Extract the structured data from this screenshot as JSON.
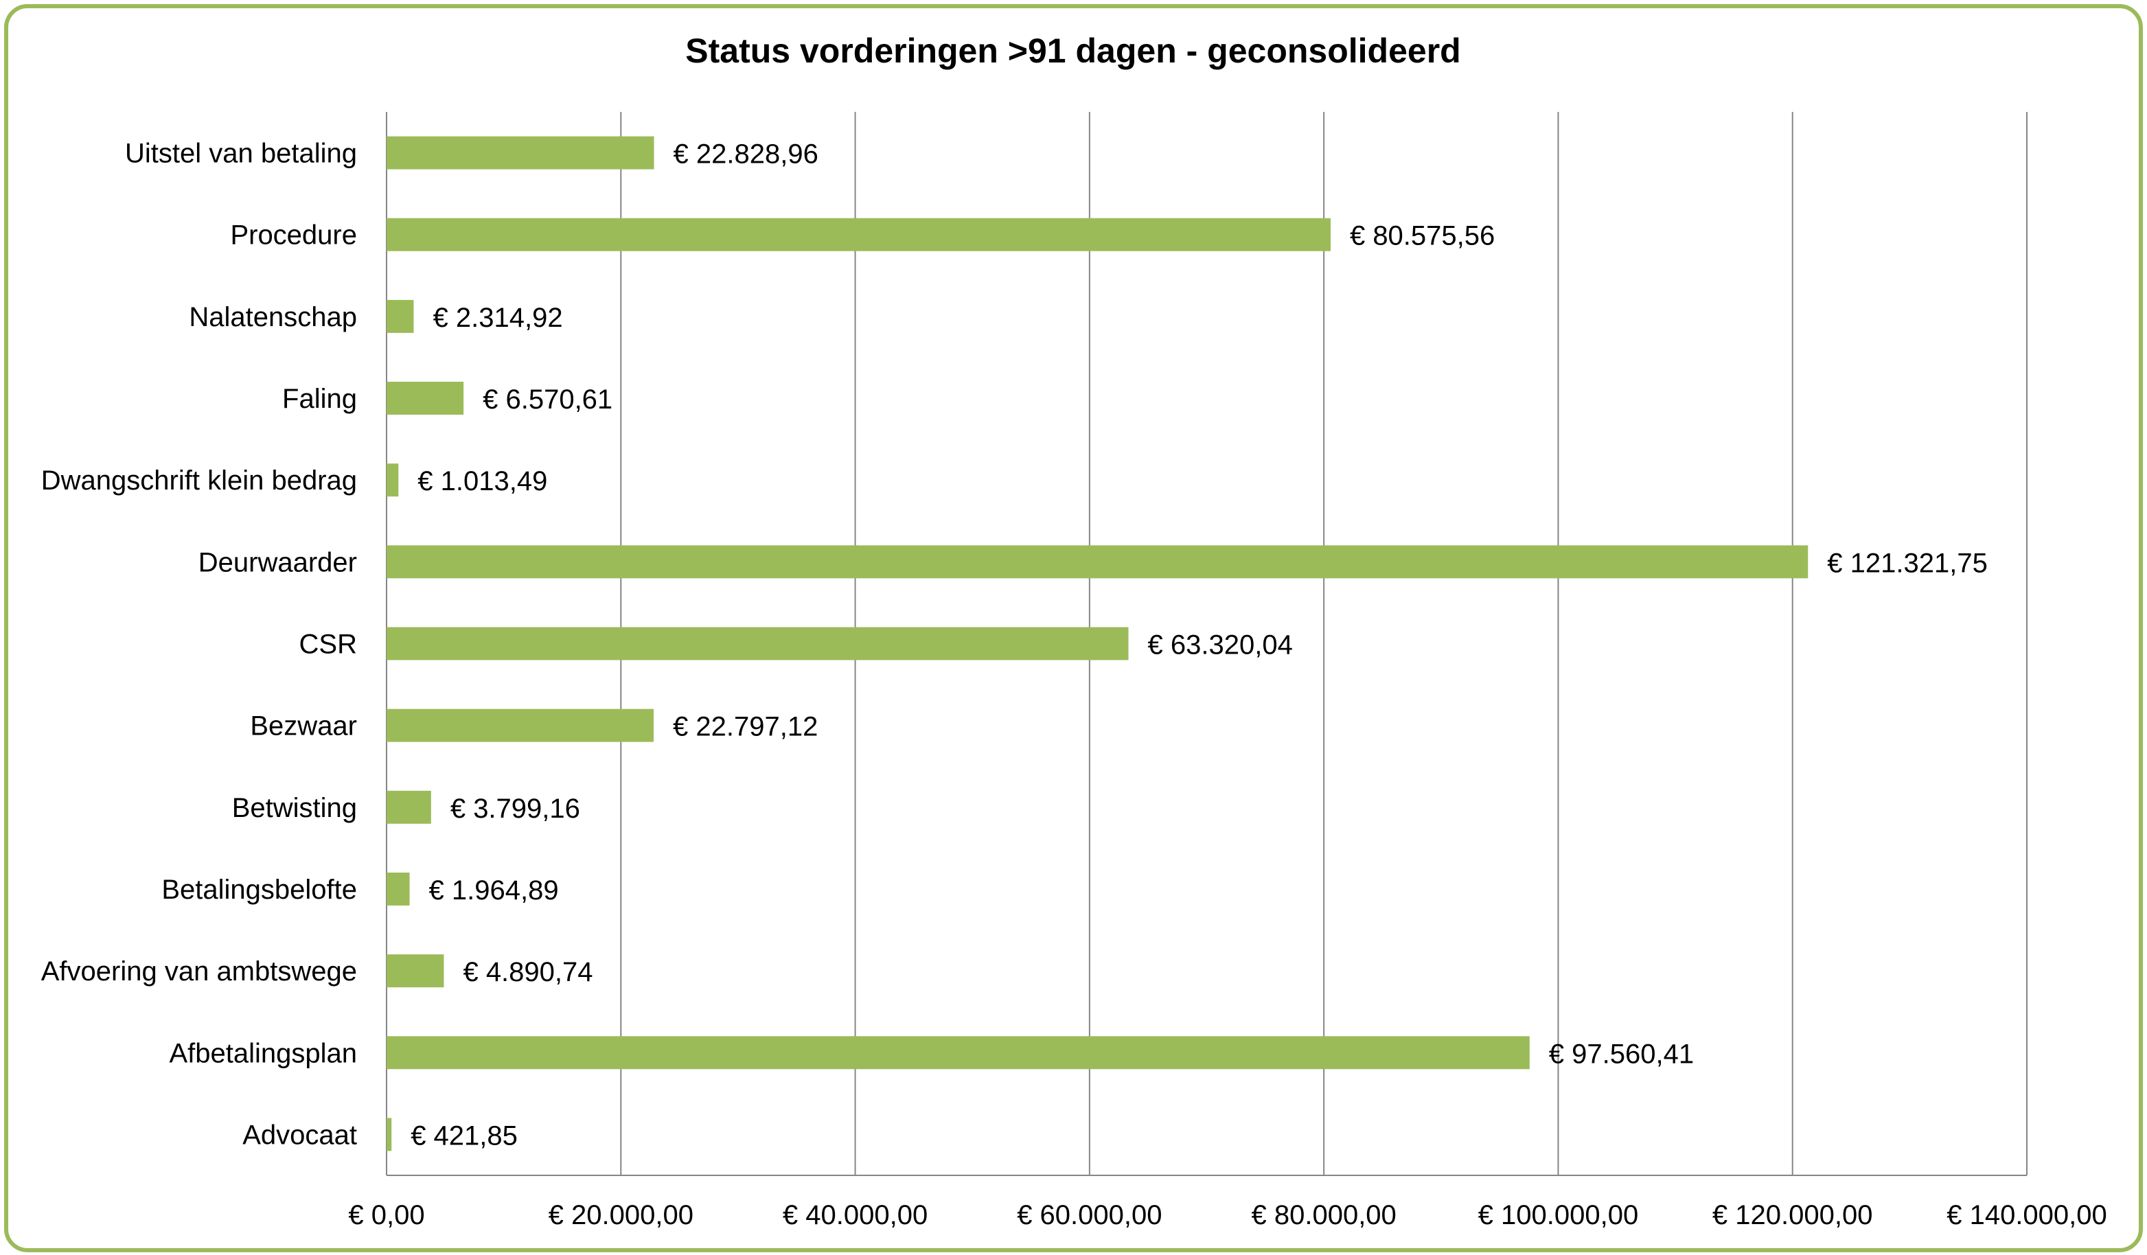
{
  "chart_data": {
    "type": "bar",
    "orientation": "horizontal",
    "title": "Status vorderingen >91 dagen - geconsolideerd",
    "xlabel": "",
    "ylabel": "",
    "categories": [
      "Uitstel van betaling",
      "Procedure",
      "Nalatenschap",
      "Faling",
      "Dwangschrift klein bedrag",
      "Deurwaarder",
      "CSR",
      "Bezwaar",
      "Betwisting",
      "Betalingsbelofte",
      "Afvoering van ambtswege",
      "Afbetalingsplan",
      "Advocaat"
    ],
    "values": [
      22828.96,
      80575.56,
      2314.92,
      6570.61,
      1013.49,
      121321.75,
      63320.04,
      22797.12,
      3799.16,
      1964.89,
      4890.74,
      97560.41,
      421.85
    ],
    "value_labels": [
      "€ 22.828,96",
      "€ 80.575,56",
      "€ 2.314,92",
      "€ 6.570,61",
      "€ 1.013,49",
      "€ 121.321,75",
      "€ 63.320,04",
      "€ 22.797,12",
      "€ 3.799,16",
      "€ 1.964,89",
      "€ 4.890,74",
      "€ 97.560,41",
      "€ 421,85"
    ],
    "xlim": [
      0,
      140000
    ],
    "x_ticks": [
      0,
      20000,
      40000,
      60000,
      80000,
      100000,
      120000,
      140000
    ],
    "x_tick_labels": [
      "€ 0,00",
      "€ 20.000,00",
      "€ 40.000,00",
      "€ 60.000,00",
      "€ 80.000,00",
      "€ 100.000,00",
      "€ 120.000,00",
      "€ 140.000,00"
    ],
    "grid": "vertical",
    "legend": "none",
    "colors": {
      "bar": "#9bbb59",
      "frame": "#9bbb59",
      "grid": "#868686"
    }
  }
}
